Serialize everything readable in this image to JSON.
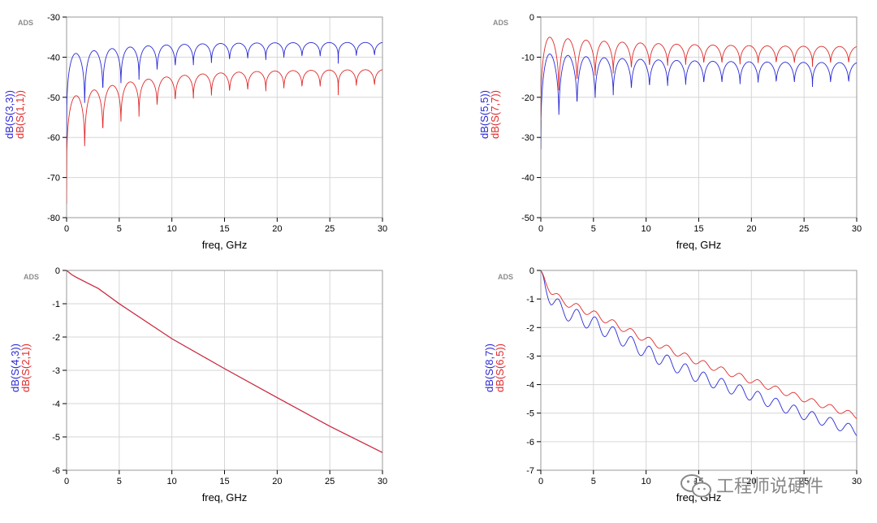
{
  "colors": {
    "blue": "#2a2ad6",
    "red": "#e02a2a",
    "grid": "#d6d6d6",
    "axis": "#000000"
  },
  "watermark": {
    "icon": "wechat-icon",
    "text": "工程师说硬件"
  },
  "chart_data": [
    {
      "id": "top-left",
      "type": "line",
      "badge": "ADS",
      "xlabel": "freq, GHz",
      "xlim": [
        0,
        30
      ],
      "xticks": [
        "0",
        "5",
        "10",
        "15",
        "20",
        "25",
        "30"
      ],
      "ylim": [
        -80,
        -30
      ],
      "yticks": [
        "-30",
        "-40",
        "-50",
        "-60",
        "-70",
        "-80"
      ],
      "series": [
        {
          "name": "dB(S(3,3))",
          "color": "#2a2ad6",
          "model": {
            "period": 1.72,
            "phase": 0.0,
            "env_start": -39.5,
            "env_end": -36.3,
            "env_tau": 6,
            "depth_start": 25,
            "depth_end": 5,
            "depth_tau": 6,
            "sharp": 0.22
          }
        },
        {
          "name": "dB(S(1,1))",
          "color": "#e02a2a",
          "model": {
            "period": 1.72,
            "phase": 0.0,
            "env_start": -50.5,
            "env_end": -43.0,
            "env_tau": 7,
            "depth_start": 26,
            "depth_end": 6,
            "depth_tau": 6,
            "sharp": 0.22
          }
        }
      ]
    },
    {
      "id": "top-right",
      "type": "line",
      "badge": "ADS",
      "xlabel": "freq, GHz",
      "xlim": [
        0,
        30
      ],
      "xticks": [
        "0",
        "5",
        "10",
        "15",
        "20",
        "25",
        "30"
      ],
      "ylim": [
        -50,
        0
      ],
      "yticks": [
        "0",
        "-10",
        "-20",
        "-30",
        "-40",
        "-50"
      ],
      "series": [
        {
          "name": "dB(S(5,5))",
          "color": "#2a2ad6",
          "model": {
            "period": 1.72,
            "phase": 0.0,
            "env_start": -9.0,
            "env_end": -11.5,
            "env_tau": 10,
            "depth_start": 24,
            "depth_end": 6,
            "depth_tau": 5,
            "sharp": 0.35
          }
        },
        {
          "name": "dB(S(7,7))",
          "color": "#e02a2a",
          "model": {
            "period": 1.72,
            "phase": 0.0,
            "env_start": -4.8,
            "env_end": -7.5,
            "env_tau": 10,
            "depth_start": 21,
            "depth_end": 5,
            "depth_tau": 5,
            "sharp": 0.35
          }
        }
      ]
    },
    {
      "id": "bottom-left",
      "type": "line",
      "badge": "ADS",
      "xlabel": "freq, GHz",
      "xlim": [
        0,
        30
      ],
      "xticks": [
        "0",
        "5",
        "10",
        "15",
        "20",
        "25",
        "30"
      ],
      "ylim": [
        -6,
        0
      ],
      "yticks": [
        "0",
        "-1",
        "-2",
        "-3",
        "-4",
        "-5",
        "-6"
      ],
      "series": [
        {
          "name": "dB(S(4,3))",
          "color": "#2a2ad6",
          "points": [
            [
              0,
              0
            ],
            [
              0.5,
              -0.13
            ],
            [
              1,
              -0.22
            ],
            [
              2,
              -0.38
            ],
            [
              3,
              -0.54
            ],
            [
              5,
              -1.0
            ],
            [
              10,
              -2.05
            ],
            [
              15,
              -2.95
            ],
            [
              20,
              -3.82
            ],
            [
              25,
              -4.68
            ],
            [
              30,
              -5.47
            ]
          ]
        },
        {
          "name": "dB(S(2,1))",
          "color": "#e02a2a",
          "points": [
            [
              0,
              0
            ],
            [
              0.5,
              -0.13
            ],
            [
              1,
              -0.22
            ],
            [
              2,
              -0.38
            ],
            [
              3,
              -0.54
            ],
            [
              5,
              -1.0
            ],
            [
              10,
              -2.05
            ],
            [
              15,
              -2.95
            ],
            [
              20,
              -3.82
            ],
            [
              25,
              -4.68
            ],
            [
              30,
              -5.47
            ]
          ]
        }
      ]
    },
    {
      "id": "bottom-right",
      "type": "line",
      "badge": "ADS",
      "xlabel": "freq, GHz",
      "xlim": [
        0,
        30
      ],
      "xticks": [
        "0",
        "5",
        "10",
        "15",
        "20",
        "25",
        "30"
      ],
      "ylim": [
        -7,
        0
      ],
      "yticks": [
        "0",
        "-1",
        "-2",
        "-3",
        "-4",
        "-5",
        "-6",
        "-7"
      ],
      "series": [
        {
          "name": "dB(S(8,7))",
          "color": "#2a2ad6",
          "model": {
            "base": [
              [
                0,
                0
              ],
              [
                1,
                -0.7
              ],
              [
                2,
                -1.15
              ],
              [
                5,
                -1.6
              ],
              [
                10,
                -2.6
              ],
              [
                15,
                -3.5
              ],
              [
                20,
                -4.15
              ],
              [
                25,
                -4.85
              ],
              [
                30,
                -5.45
              ]
            ],
            "period": 1.72,
            "amp_start": 0.55,
            "amp_end": 0.35
          }
        },
        {
          "name": "dB(S(6,5))",
          "color": "#e02a2a",
          "model": {
            "base": [
              [
                0,
                0
              ],
              [
                1,
                -0.6
              ],
              [
                2,
                -0.95
              ],
              [
                5,
                -1.4
              ],
              [
                10,
                -2.3
              ],
              [
                15,
                -3.1
              ],
              [
                20,
                -3.75
              ],
              [
                25,
                -4.4
              ],
              [
                30,
                -5.0
              ]
            ],
            "period": 1.72,
            "amp_start": 0.25,
            "amp_end": 0.2
          }
        }
      ]
    }
  ]
}
